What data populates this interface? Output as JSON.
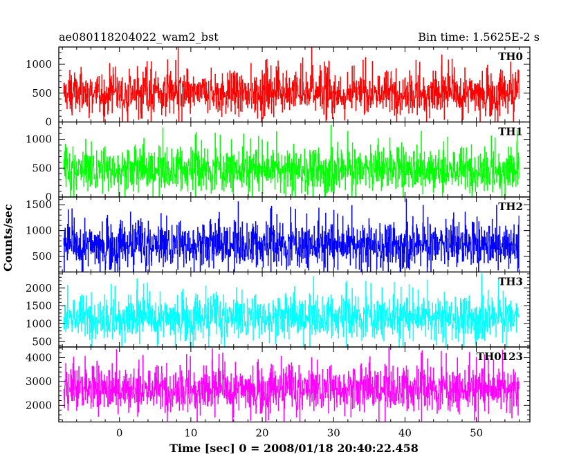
{
  "header": {
    "left": "ae080118204022_wam2_bst",
    "right": "Bin time: 1.5625E-2 s"
  },
  "chart_data": {
    "type": "line",
    "xlabel": "Time [sec] 0 = 2008/01/18 20:40:22.458",
    "ylabel": "Counts/sec",
    "x_ticks": [
      0,
      10,
      20,
      30,
      40,
      50
    ],
    "xlim": [
      -8.5,
      57.5
    ],
    "data_x_range": [
      -7.8,
      56.0
    ],
    "panels": [
      {
        "label": "TH0",
        "color": "#ff0000",
        "ylim": [
          0,
          1300
        ],
        "y_ticks": [
          0,
          500,
          1000
        ],
        "mean": 500,
        "spread": 320,
        "floor": 0
      },
      {
        "label": "TH1",
        "color": "#00ff00",
        "ylim": [
          0,
          1300
        ],
        "y_ticks": [
          0,
          500,
          1000
        ],
        "mean": 470,
        "spread": 330,
        "floor": 0
      },
      {
        "label": "TH2",
        "color": "#0000ff",
        "ylim": [
          200,
          1650
        ],
        "y_ticks": [
          500,
          1000,
          1500
        ],
        "mean": 720,
        "spread": 380,
        "floor": 200
      },
      {
        "label": "TH3",
        "color": "#00ffff",
        "ylim": [
          350,
          2450
        ],
        "y_ticks": [
          500,
          1000,
          1500,
          2000
        ],
        "mean": 1180,
        "spread": 520,
        "floor": 350
      },
      {
        "label": "TH0123",
        "color": "#ff00ff",
        "ylim": [
          1300,
          4450
        ],
        "y_ticks": [
          2000,
          3000,
          4000
        ],
        "mean": 2680,
        "spread": 820,
        "floor": 1300
      }
    ]
  }
}
